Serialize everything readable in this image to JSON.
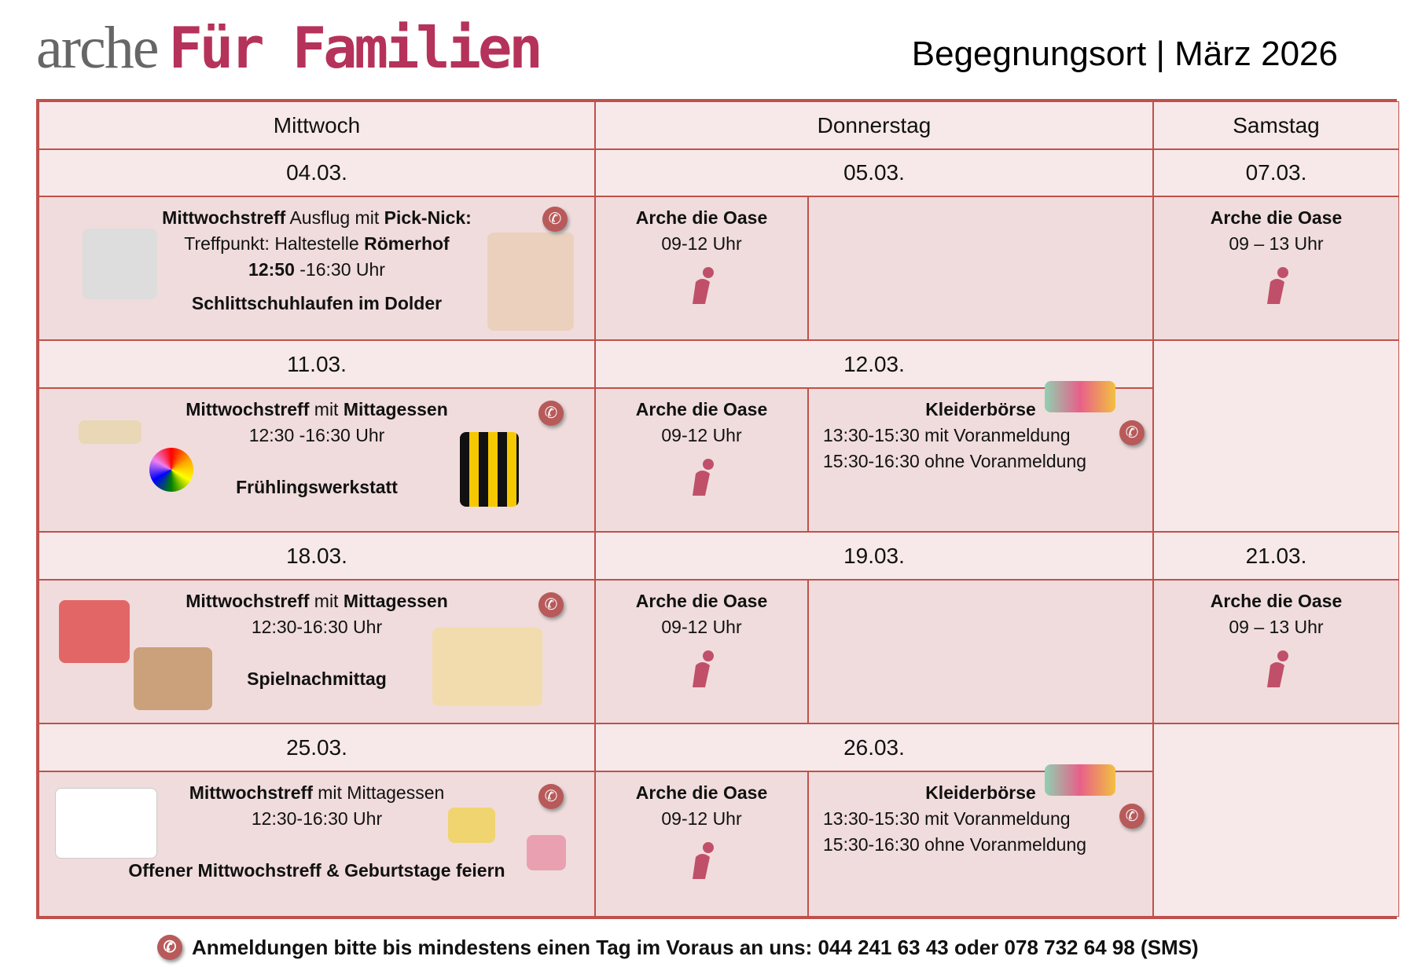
{
  "logo": {
    "a": "arche",
    "b": "Für Familien"
  },
  "title": "Begegnungsort | März 2026",
  "days": [
    "Mittwoch",
    "Donnerstag",
    "Samstag"
  ],
  "dates": [
    "04.03.",
    "05.03.",
    "07.03.",
    "11.03.",
    "12.03.",
    "18.03.",
    "19.03.",
    "21.03.",
    "25.03.",
    "26.03."
  ],
  "oase": {
    "name": "Arche die Oase",
    "time_do": "09-12 Uhr",
    "time_sa": "09 – 13 Uhr"
  },
  "w1": {
    "l1a": "Mittwochstreff",
    "l1b": " Ausflug mit ",
    "l1c": "Pick-Nick:",
    "l2a": "Treffpunkt: Haltestelle ",
    "l2b": "Römerhof",
    "l3a": "12:50",
    "l3b": " -16:30 Uhr",
    "l4": "Schlittschuhlaufen im Dolder"
  },
  "w2": {
    "l1a": "Mittwochstreff",
    "l1b": " mit ",
    "l1c": "Mittagessen",
    "l2": "12:30 -16:30 Uhr",
    "l3": "Frühlingswerkstatt"
  },
  "w3": {
    "l1a": "Mittwochstreff",
    "l1b": " mit ",
    "l1c": "Mittagessen",
    "l2": "12:30-16:30 Uhr",
    "l3": "Spielnachmittag"
  },
  "w4": {
    "l1a": "Mittwochstreff",
    "l1b": " mit Mittagessen",
    "l2": "12:30-16:30 Uhr",
    "l3": "Offener Mittwochstreff & Geburtstage feiern"
  },
  "kleider": {
    "title": "Kleiderbörse",
    "l1": "13:30-15:30 mit Voranmeldung",
    "l2": "15:30-16:30 ohne Voranmeldung"
  },
  "footer": "Anmeldungen bitte bis mindestens einen Tag im Voraus an uns: 044 241 63 43 oder 078 732 64 98 (SMS)",
  "colors": {
    "border": "#c0504d",
    "brand": "#b5325a",
    "cell": "#f0dcdc",
    "header": "#f7e9e9"
  },
  "icons": {
    "phone": "phone-icon",
    "kid": "child-icon"
  }
}
